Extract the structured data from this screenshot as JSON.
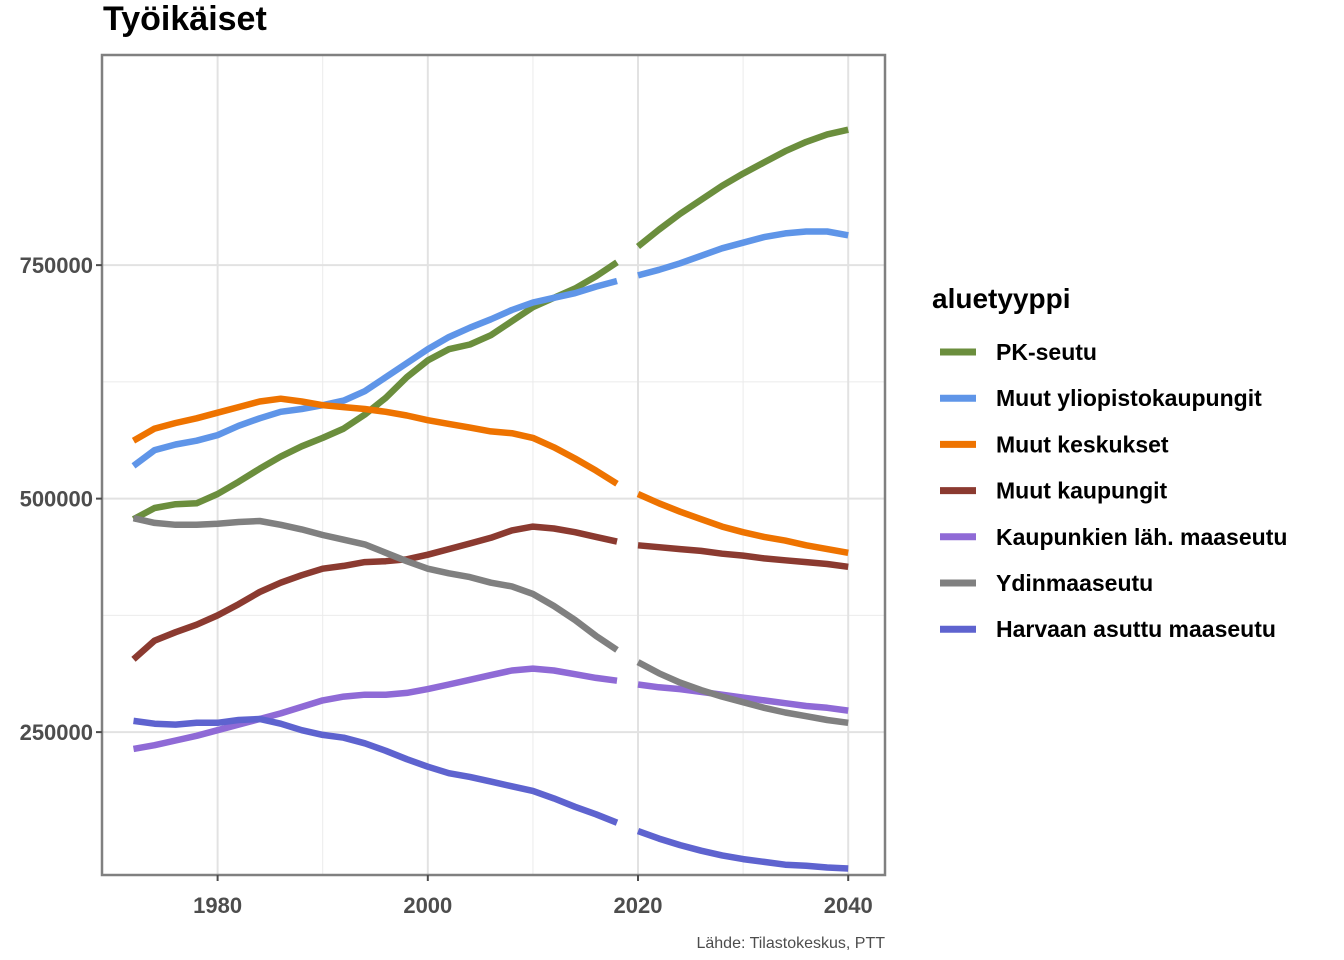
{
  "chart_data": {
    "type": "line",
    "title": "Työikäiset",
    "caption": "Lähde: Tilastokeskus, PTT",
    "xlabel": "",
    "ylabel": "",
    "xlim": [
      1969,
      2043.5
    ],
    "ylim": [
      97000,
      975000
    ],
    "x_ticks": [
      1980,
      2000,
      2020,
      2040
    ],
    "y_ticks": [
      250000,
      500000,
      750000
    ],
    "y_tick_labels": [
      "250000",
      "500000",
      "750000"
    ],
    "grid": true,
    "legend_title": "aluetyyppi",
    "legend_position": "right",
    "note": "",
    "series": [
      {
        "name": "PK-seutu",
        "color": "#6b8e3d",
        "points": [
          [
            1972,
            478000
          ],
          [
            1974,
            490000
          ],
          [
            1976,
            494000
          ],
          [
            1978,
            495000
          ],
          [
            1980,
            505000
          ],
          [
            1982,
            518000
          ],
          [
            1984,
            532000
          ],
          [
            1986,
            545000
          ],
          [
            1988,
            556000
          ],
          [
            1990,
            565000
          ],
          [
            1992,
            575000
          ],
          [
            1994,
            590000
          ],
          [
            1996,
            608000
          ],
          [
            1998,
            630000
          ],
          [
            2000,
            648000
          ],
          [
            2002,
            660000
          ],
          [
            2004,
            665000
          ],
          [
            2006,
            675000
          ],
          [
            2008,
            690000
          ],
          [
            2010,
            705000
          ],
          [
            2012,
            715000
          ],
          [
            2014,
            725000
          ],
          [
            2016,
            738000
          ],
          [
            2018,
            753000
          ],
          [
            2020,
            770000
          ],
          [
            2022,
            788000
          ],
          [
            2024,
            805000
          ],
          [
            2026,
            820000
          ],
          [
            2028,
            835000
          ],
          [
            2030,
            848000
          ],
          [
            2032,
            860000
          ],
          [
            2034,
            872000
          ],
          [
            2036,
            882000
          ],
          [
            2038,
            890000
          ],
          [
            2040,
            895000
          ]
        ]
      },
      {
        "name": "Muut yliopistokaupungit",
        "color": "#5f95e8",
        "points": [
          [
            1972,
            535000
          ],
          [
            1974,
            552000
          ],
          [
            1976,
            558000
          ],
          [
            1978,
            562000
          ],
          [
            1980,
            568000
          ],
          [
            1982,
            578000
          ],
          [
            1984,
            586000
          ],
          [
            1986,
            593000
          ],
          [
            1988,
            596000
          ],
          [
            1990,
            600000
          ],
          [
            1992,
            605000
          ],
          [
            1994,
            615000
          ],
          [
            1996,
            630000
          ],
          [
            1998,
            645000
          ],
          [
            2000,
            660000
          ],
          [
            2002,
            673000
          ],
          [
            2004,
            683000
          ],
          [
            2006,
            692000
          ],
          [
            2008,
            702000
          ],
          [
            2010,
            710000
          ],
          [
            2012,
            715000
          ],
          [
            2014,
            720000
          ],
          [
            2016,
            727000
          ],
          [
            2018,
            733000
          ],
          [
            2020,
            739000
          ],
          [
            2022,
            745000
          ],
          [
            2024,
            752000
          ],
          [
            2026,
            760000
          ],
          [
            2028,
            768000
          ],
          [
            2030,
            774000
          ],
          [
            2032,
            780000
          ],
          [
            2034,
            784000
          ],
          [
            2036,
            786000
          ],
          [
            2038,
            786000
          ],
          [
            2040,
            782000
          ]
        ]
      },
      {
        "name": "Muut keskukset",
        "color": "#ee7300",
        "points": [
          [
            1972,
            562000
          ],
          [
            1974,
            575000
          ],
          [
            1976,
            581000
          ],
          [
            1978,
            586000
          ],
          [
            1980,
            592000
          ],
          [
            1982,
            598000
          ],
          [
            1984,
            604000
          ],
          [
            1986,
            607000
          ],
          [
            1988,
            604000
          ],
          [
            1990,
            600000
          ],
          [
            1992,
            598000
          ],
          [
            1994,
            596000
          ],
          [
            1996,
            593000
          ],
          [
            1998,
            589000
          ],
          [
            2000,
            584000
          ],
          [
            2002,
            580000
          ],
          [
            2004,
            576000
          ],
          [
            2006,
            572000
          ],
          [
            2008,
            570000
          ],
          [
            2010,
            565000
          ],
          [
            2012,
            555000
          ],
          [
            2014,
            543000
          ],
          [
            2016,
            530000
          ],
          [
            2018,
            516000
          ],
          [
            2020,
            505000
          ],
          [
            2022,
            495000
          ],
          [
            2024,
            486000
          ],
          [
            2026,
            478000
          ],
          [
            2028,
            470000
          ],
          [
            2030,
            464000
          ],
          [
            2032,
            459000
          ],
          [
            2034,
            455000
          ],
          [
            2036,
            450000
          ],
          [
            2038,
            446000
          ],
          [
            2040,
            442000
          ]
        ]
      },
      {
        "name": "Muut kaupungit",
        "color": "#8b3a30",
        "points": [
          [
            1972,
            328000
          ],
          [
            1974,
            348000
          ],
          [
            1976,
            357000
          ],
          [
            1978,
            365000
          ],
          [
            1980,
            375000
          ],
          [
            1982,
            387000
          ],
          [
            1984,
            400000
          ],
          [
            1986,
            410000
          ],
          [
            1988,
            418000
          ],
          [
            1990,
            425000
          ],
          [
            1992,
            428000
          ],
          [
            1994,
            432000
          ],
          [
            1996,
            433000
          ],
          [
            1998,
            435000
          ],
          [
            2000,
            440000
          ],
          [
            2002,
            446000
          ],
          [
            2004,
            452000
          ],
          [
            2006,
            458000
          ],
          [
            2008,
            466000
          ],
          [
            2010,
            470000
          ],
          [
            2012,
            468000
          ],
          [
            2014,
            464000
          ],
          [
            2016,
            459000
          ],
          [
            2018,
            454000
          ],
          [
            2020,
            450000
          ],
          [
            2022,
            448000
          ],
          [
            2024,
            446000
          ],
          [
            2026,
            444000
          ],
          [
            2028,
            441000
          ],
          [
            2030,
            439000
          ],
          [
            2032,
            436000
          ],
          [
            2034,
            434000
          ],
          [
            2036,
            432000
          ],
          [
            2038,
            430000
          ],
          [
            2040,
            427000
          ]
        ]
      },
      {
        "name": "Kaupunkien läh. maaseutu",
        "color": "#8f6ad6",
        "points": [
          [
            1972,
            232000
          ],
          [
            1974,
            236000
          ],
          [
            1976,
            241000
          ],
          [
            1978,
            246000
          ],
          [
            1980,
            252000
          ],
          [
            1982,
            258000
          ],
          [
            1984,
            264000
          ],
          [
            1986,
            270000
          ],
          [
            1988,
            277000
          ],
          [
            1990,
            284000
          ],
          [
            1992,
            288000
          ],
          [
            1994,
            290000
          ],
          [
            1996,
            290000
          ],
          [
            1998,
            292000
          ],
          [
            2000,
            296000
          ],
          [
            2002,
            301000
          ],
          [
            2004,
            306000
          ],
          [
            2006,
            311000
          ],
          [
            2008,
            316000
          ],
          [
            2010,
            318000
          ],
          [
            2012,
            316000
          ],
          [
            2014,
            312000
          ],
          [
            2016,
            308000
          ],
          [
            2018,
            305000
          ],
          [
            2020,
            301000
          ],
          [
            2022,
            298000
          ],
          [
            2024,
            296000
          ],
          [
            2026,
            293000
          ],
          [
            2028,
            290000
          ],
          [
            2030,
            287000
          ],
          [
            2032,
            284000
          ],
          [
            2034,
            281000
          ],
          [
            2036,
            278000
          ],
          [
            2038,
            276000
          ],
          [
            2040,
            273000
          ]
        ]
      },
      {
        "name": "Ydinmaaseutu",
        "color": "#808080",
        "points": [
          [
            1972,
            479000
          ],
          [
            1974,
            474000
          ],
          [
            1976,
            472000
          ],
          [
            1978,
            472000
          ],
          [
            1980,
            473000
          ],
          [
            1982,
            475000
          ],
          [
            1984,
            476000
          ],
          [
            1986,
            472000
          ],
          [
            1988,
            467000
          ],
          [
            1990,
            461000
          ],
          [
            1992,
            456000
          ],
          [
            1994,
            451000
          ],
          [
            1996,
            442000
          ],
          [
            1998,
            433000
          ],
          [
            2000,
            425000
          ],
          [
            2002,
            420000
          ],
          [
            2004,
            416000
          ],
          [
            2006,
            410000
          ],
          [
            2008,
            406000
          ],
          [
            2010,
            398000
          ],
          [
            2012,
            385000
          ],
          [
            2014,
            370000
          ],
          [
            2016,
            353000
          ],
          [
            2018,
            338000
          ],
          [
            2020,
            325000
          ],
          [
            2022,
            313000
          ],
          [
            2024,
            303000
          ],
          [
            2026,
            295000
          ],
          [
            2028,
            288000
          ],
          [
            2030,
            282000
          ],
          [
            2032,
            276000
          ],
          [
            2034,
            271000
          ],
          [
            2036,
            267000
          ],
          [
            2038,
            263000
          ],
          [
            2040,
            260000
          ]
        ]
      },
      {
        "name": "Harvaan asuttu maaseutu",
        "color": "#5e63cf",
        "points": [
          [
            1972,
            262000
          ],
          [
            1974,
            259000
          ],
          [
            1976,
            258000
          ],
          [
            1978,
            260000
          ],
          [
            1980,
            260000
          ],
          [
            1982,
            263000
          ],
          [
            1984,
            264000
          ],
          [
            1986,
            259000
          ],
          [
            1988,
            252000
          ],
          [
            1990,
            247000
          ],
          [
            1992,
            244000
          ],
          [
            1994,
            238000
          ],
          [
            1996,
            230000
          ],
          [
            1998,
            221000
          ],
          [
            2000,
            213000
          ],
          [
            2002,
            206000
          ],
          [
            2004,
            202000
          ],
          [
            2006,
            197000
          ],
          [
            2008,
            192000
          ],
          [
            2010,
            187000
          ],
          [
            2012,
            179000
          ],
          [
            2014,
            170000
          ],
          [
            2016,
            162000
          ],
          [
            2018,
            153000
          ],
          [
            2020,
            144000
          ],
          [
            2022,
            136000
          ],
          [
            2024,
            129000
          ],
          [
            2026,
            123000
          ],
          [
            2028,
            118000
          ],
          [
            2030,
            114000
          ],
          [
            2032,
            111000
          ],
          [
            2034,
            108000
          ],
          [
            2036,
            107000
          ],
          [
            2038,
            105000
          ],
          [
            2040,
            104000
          ]
        ]
      }
    ]
  }
}
